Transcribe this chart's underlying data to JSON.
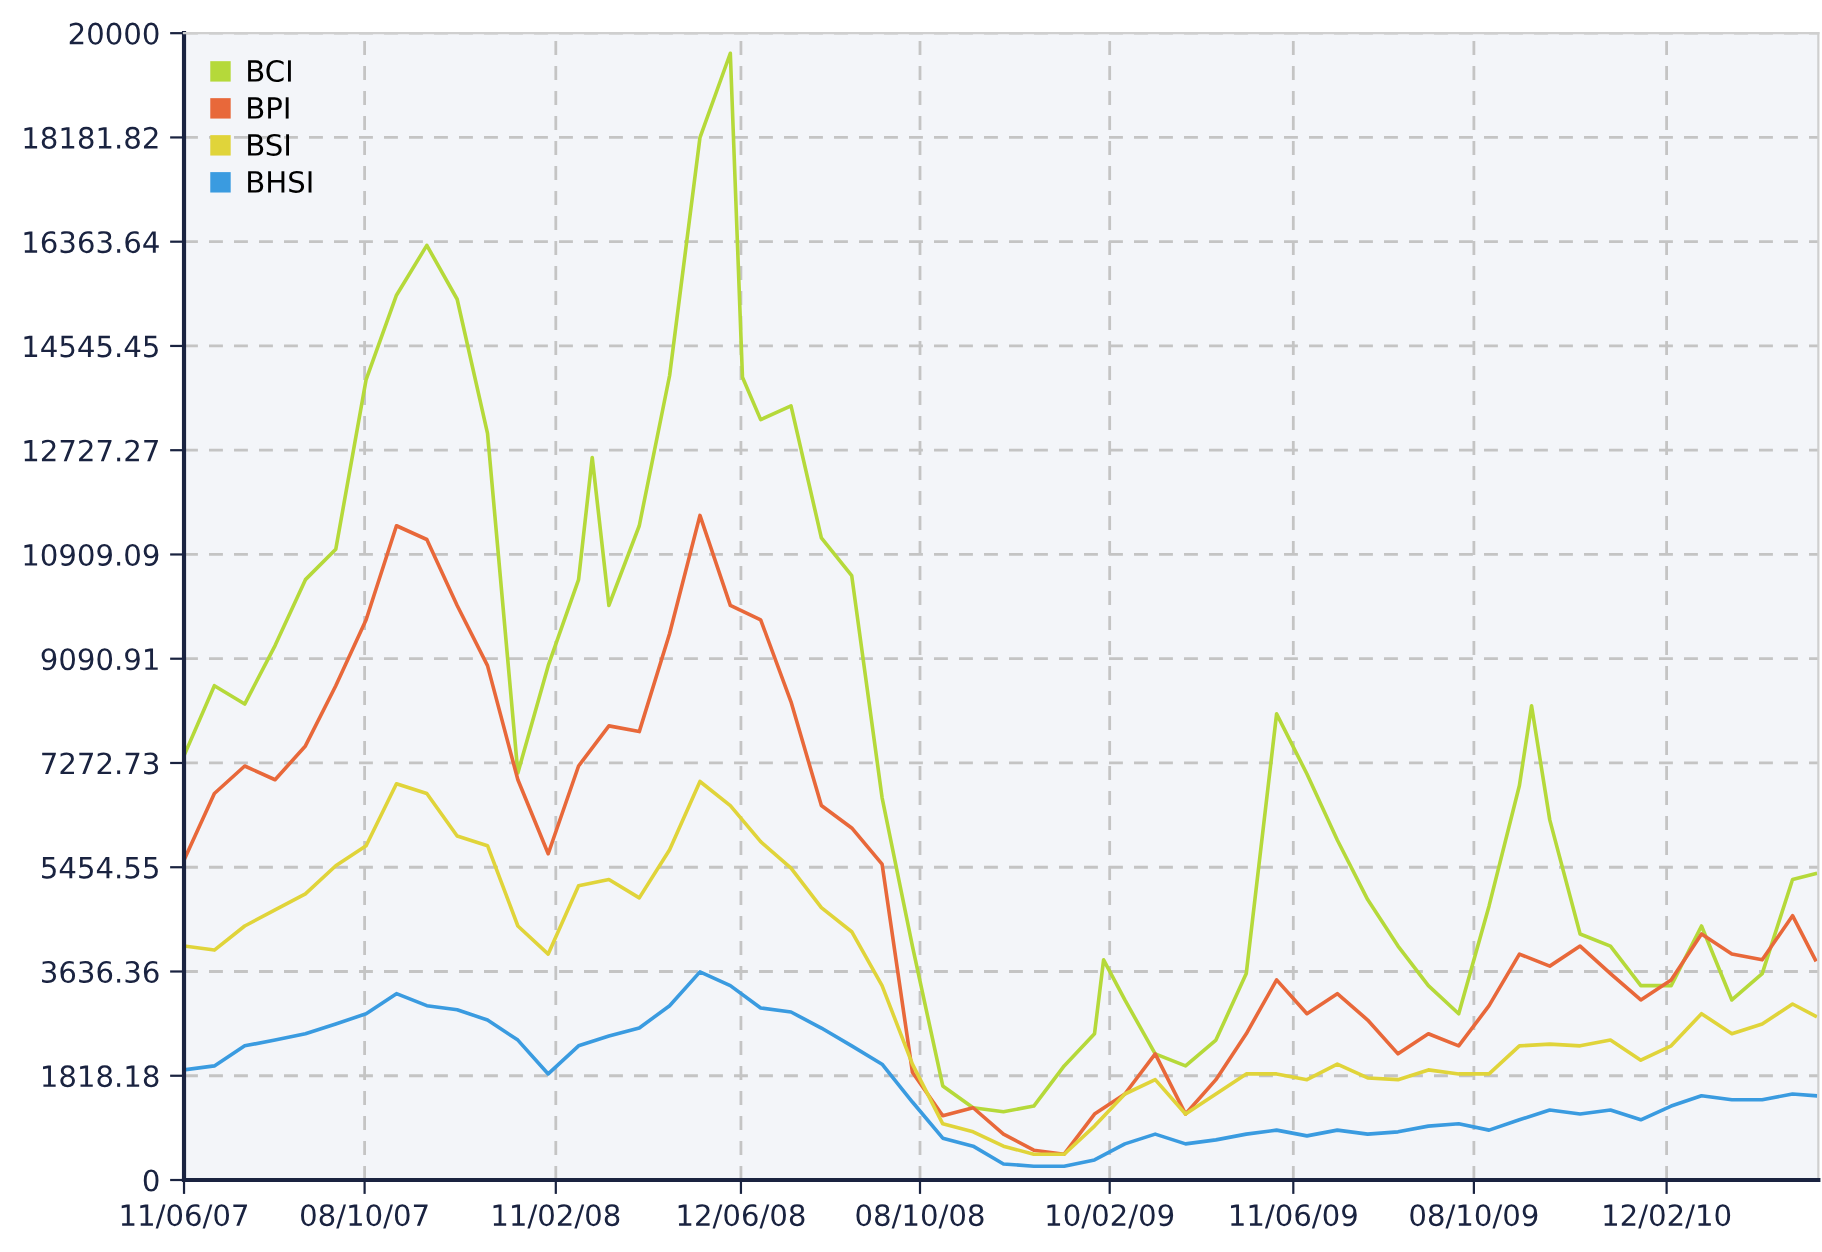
{
  "chart_data": {
    "type": "line",
    "x": [
      "2007-06-11",
      "2007-07-01",
      "2007-07-21",
      "2007-08-10",
      "2007-08-30",
      "2007-09-19",
      "2007-10-09",
      "2007-10-29",
      "2007-11-18",
      "2007-12-08",
      "2007-12-28",
      "2008-01-17",
      "2008-02-06",
      "2008-02-26",
      "2008-03-17",
      "2008-04-06",
      "2008-04-26",
      "2008-05-16",
      "2008-06-05",
      "2008-06-25",
      "2008-07-15",
      "2008-08-04",
      "2008-08-24",
      "2008-09-13",
      "2008-10-03",
      "2008-10-23",
      "2008-11-12",
      "2008-12-02",
      "2008-12-22",
      "2009-01-11",
      "2009-01-31",
      "2009-02-20",
      "2009-03-12",
      "2009-04-01",
      "2009-04-21",
      "2009-05-11",
      "2009-05-31",
      "2009-06-20",
      "2009-07-10",
      "2009-07-30",
      "2009-08-19",
      "2009-09-08",
      "2009-09-28",
      "2009-10-18",
      "2009-11-07",
      "2009-11-27",
      "2009-12-17",
      "2010-01-06",
      "2010-01-26",
      "2010-02-15",
      "2010-03-07",
      "2010-03-27",
      "2010-04-16",
      "2010-05-06",
      "2010-05-21"
    ],
    "series": [
      {
        "name": "BCI",
        "color": "#b5d93a",
        "x": [
          "2007-06-11",
          "2007-07-01",
          "2007-07-21",
          "2007-08-10",
          "2007-08-30",
          "2007-09-19",
          "2007-10-09",
          "2007-10-29",
          "2007-11-18",
          "2007-12-08",
          "2007-12-28",
          "2008-01-17",
          "2008-02-06",
          "2008-02-26",
          "2008-03-06",
          "2008-03-17",
          "2008-04-06",
          "2008-04-26",
          "2008-05-16",
          "2008-06-05",
          "2008-06-13",
          "2008-06-25",
          "2008-07-15",
          "2008-08-04",
          "2008-08-24",
          "2008-09-13",
          "2008-10-03",
          "2008-10-23",
          "2008-11-12",
          "2008-12-02",
          "2008-12-22",
          "2009-01-11",
          "2009-01-31",
          "2009-02-06",
          "2009-02-20",
          "2009-03-12",
          "2009-04-01",
          "2009-04-21",
          "2009-05-11",
          "2009-05-31",
          "2009-06-20",
          "2009-07-10",
          "2009-07-30",
          "2009-08-19",
          "2009-09-08",
          "2009-09-28",
          "2009-10-18",
          "2009-11-07",
          "2009-11-15",
          "2009-11-27",
          "2009-12-17",
          "2010-01-06",
          "2010-01-26",
          "2010-02-15",
          "2010-03-07",
          "2010-03-27",
          "2010-04-16",
          "2010-05-06",
          "2010-05-21"
        ],
        "values": [
          7400,
          8620,
          8300,
          9320,
          10470,
          11000,
          13960,
          15430,
          16300,
          15360,
          13020,
          7100,
          8970,
          10470,
          12600,
          10020,
          11410,
          14030,
          18180,
          19650,
          14000,
          13260,
          13500,
          11200,
          10540,
          6670,
          4080,
          1640,
          1260,
          1190,
          1290,
          1990,
          2550,
          3840,
          3140,
          2200,
          1990,
          2440,
          3600,
          8130,
          7080,
          5930,
          4890,
          4080,
          3390,
          2900,
          4780,
          6880,
          8270,
          6280,
          4290,
          4080,
          3390,
          3390,
          4430,
          3140,
          3600,
          5240,
          5340
        ]
      },
      {
        "name": "BPI",
        "color": "#e8683a",
        "values": [
          5580,
          6740,
          7220,
          6980,
          7570,
          8620,
          9770,
          11410,
          11170,
          10020,
          8970,
          6980,
          5690,
          7220,
          7920,
          7820,
          9530,
          11590,
          10020,
          9770,
          8340,
          6530,
          6140,
          5510,
          1880,
          1120,
          1260,
          800,
          520,
          450,
          1150,
          1500,
          2200,
          1150,
          1750,
          2550,
          3490,
          2900,
          3250,
          2790,
          2200,
          2550,
          2340,
          3040,
          3940,
          3730,
          4080,
          3600,
          3140,
          3490,
          4290,
          3940,
          3840,
          4610,
          3840
        ]
      },
      {
        "name": "BSI",
        "color": "#e0d43a",
        "values": [
          4080,
          4010,
          4430,
          4710,
          4990,
          5480,
          5830,
          6910,
          6740,
          6000,
          5830,
          4430,
          3940,
          5130,
          5240,
          4920,
          5760,
          6950,
          6530,
          5900,
          5440,
          4750,
          4330,
          3390,
          2020,
          980,
          840,
          590,
          450,
          450,
          940,
          1500,
          1750,
          1150,
          1500,
          1850,
          1850,
          1750,
          2020,
          1780,
          1750,
          1920,
          1850,
          1850,
          2340,
          2370,
          2340,
          2440,
          2090,
          2340,
          2900,
          2550,
          2720,
          3070,
          2860
        ]
      },
      {
        "name": "BHSI",
        "color": "#3a9be0",
        "values": [
          1920,
          1990,
          2340,
          2440,
          2550,
          2720,
          2900,
          3250,
          3040,
          2970,
          2790,
          2440,
          1850,
          2340,
          2510,
          2650,
          3040,
          3630,
          3390,
          3000,
          2930,
          2650,
          2340,
          2020,
          1360,
          730,
          590,
          280,
          240,
          240,
          350,
          630,
          800,
          630,
          700,
          800,
          870,
          770,
          870,
          800,
          840,
          940,
          980,
          870,
          1050,
          1220,
          1150,
          1220,
          1050,
          1290,
          1470,
          1400,
          1400,
          1500,
          1470
        ]
      }
    ],
    "xlim": [
      "2007-06-11",
      "2010-05-23"
    ],
    "xticks": [
      {
        "value": "2007-06-11",
        "label": "11/06/07"
      },
      {
        "value": "2007-10-08",
        "label": "08/10/07"
      },
      {
        "value": "2008-02-11",
        "label": "11/02/08"
      },
      {
        "value": "2008-06-12",
        "label": "12/06/08"
      },
      {
        "value": "2008-10-08",
        "label": "08/10/08"
      },
      {
        "value": "2009-02-10",
        "label": "10/02/09"
      },
      {
        "value": "2009-06-11",
        "label": "11/06/09"
      },
      {
        "value": "2009-10-08",
        "label": "08/10/09"
      },
      {
        "value": "2010-02-12",
        "label": "12/02/10"
      }
    ],
    "ylim": [
      0,
      20000
    ],
    "yticks": [
      0,
      1818.18,
      3636.36,
      5454.55,
      7272.73,
      9090.91,
      10909.09,
      12727.27,
      14545.45,
      16363.64,
      18181.82,
      20000
    ],
    "grid": true,
    "legend": "top left",
    "line_style": "solid",
    "marker": "none"
  }
}
